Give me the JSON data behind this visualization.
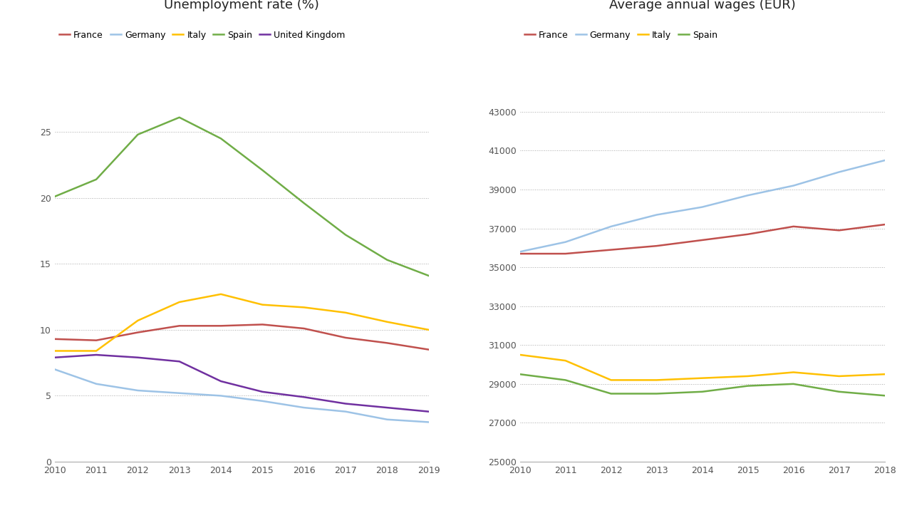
{
  "unemployment": {
    "title": "Unemployment rate (%)",
    "years": [
      2010,
      2011,
      2012,
      2013,
      2014,
      2015,
      2016,
      2017,
      2018,
      2019
    ],
    "series": {
      "France": [
        9.3,
        9.2,
        9.8,
        10.3,
        10.3,
        10.4,
        10.1,
        9.4,
        9.0,
        8.5
      ],
      "Germany": [
        7.0,
        5.9,
        5.4,
        5.2,
        5.0,
        4.6,
        4.1,
        3.8,
        3.2,
        3.0
      ],
      "Italy": [
        8.4,
        8.4,
        10.7,
        12.1,
        12.7,
        11.9,
        11.7,
        11.3,
        10.6,
        10.0
      ],
      "Spain": [
        20.1,
        21.4,
        24.8,
        26.1,
        24.5,
        22.1,
        19.6,
        17.2,
        15.3,
        14.1
      ],
      "United Kingdom": [
        7.9,
        8.1,
        7.9,
        7.6,
        6.1,
        5.3,
        4.9,
        4.4,
        4.1,
        3.8
      ]
    },
    "colors": {
      "France": "#c0504d",
      "Germany": "#9dc3e6",
      "Italy": "#ffc000",
      "Spain": "#70ad47",
      "United Kingdom": "#7030a0"
    },
    "ylim": [
      0,
      28
    ],
    "yticks": [
      0,
      5,
      10,
      15,
      20,
      25
    ],
    "grid_ticks": [
      5,
      10,
      15,
      20,
      25
    ]
  },
  "wages": {
    "title": "Average annual wages (EUR)",
    "years": [
      2010,
      2011,
      2012,
      2013,
      2014,
      2015,
      2016,
      2017,
      2018
    ],
    "series": {
      "France": [
        35700,
        35700,
        35900,
        36100,
        36400,
        36700,
        37100,
        36900,
        37200
      ],
      "Germany": [
        35800,
        36300,
        37100,
        37700,
        38100,
        38700,
        39200,
        39900,
        40500
      ],
      "Italy": [
        30500,
        30200,
        29200,
        29200,
        29300,
        29400,
        29600,
        29400,
        29500
      ],
      "Spain": [
        29500,
        29200,
        28500,
        28500,
        28600,
        28900,
        29000,
        28600,
        28400
      ]
    },
    "colors": {
      "France": "#c0504d",
      "Germany": "#9dc3e6",
      "Italy": "#ffc000",
      "Spain": "#70ad47"
    },
    "ylim": [
      25000,
      44000
    ],
    "yticks": [
      25000,
      27000,
      29000,
      31000,
      33000,
      35000,
      37000,
      39000,
      41000,
      43000
    ],
    "grid_ticks": [
      27000,
      29000,
      31000,
      33000,
      35000,
      37000,
      39000,
      41000,
      43000
    ]
  },
  "background_color": "#ffffff",
  "legend_order_unemp": [
    "France",
    "Germany",
    "Italy",
    "Spain",
    "United Kingdom"
  ],
  "legend_order_wages": [
    "France",
    "Germany",
    "Italy",
    "Spain"
  ]
}
